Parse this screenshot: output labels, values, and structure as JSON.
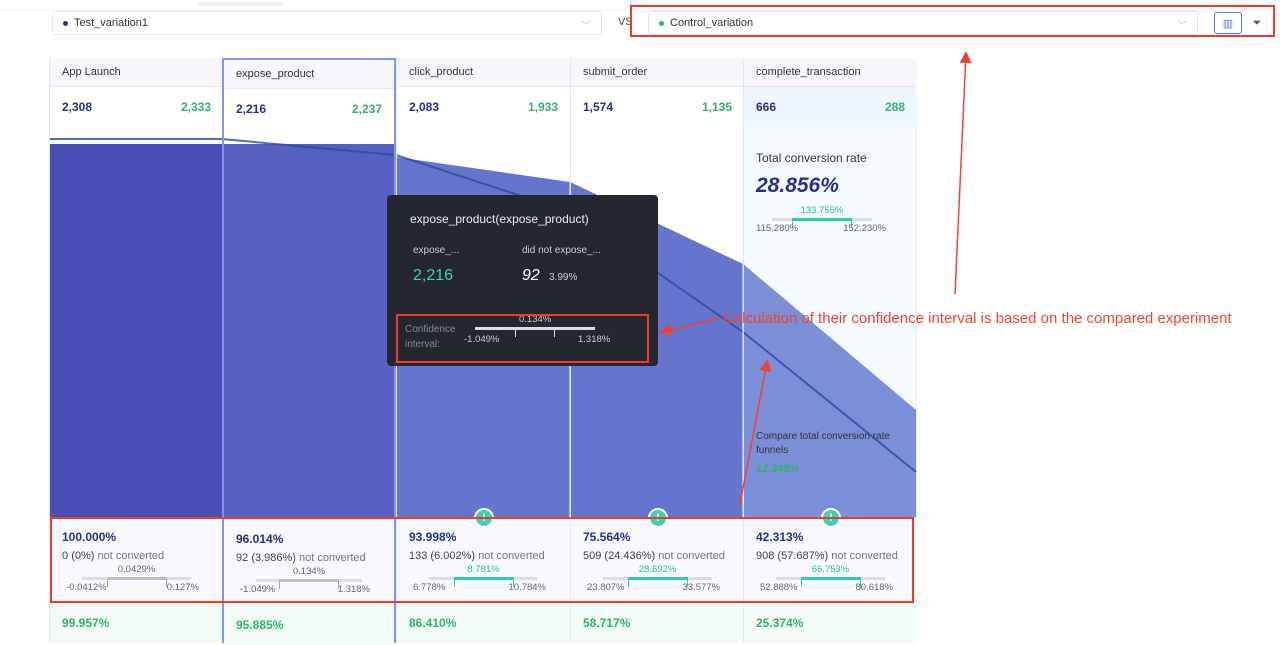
{
  "header": {
    "test_variation": "Test_variation1",
    "vs_label": "VS",
    "control_variation": "Control_variation",
    "test_color": "#23308f",
    "control_color": "#2fb36c"
  },
  "toolbar": {
    "chart_icon": "bar-chart-icon",
    "funnel_icon": "funnel-filter-icon"
  },
  "steps": [
    {
      "name": "App Launch",
      "test": "2,308",
      "control": "2,333",
      "pct": "100.000%",
      "nc_count": "0",
      "nc_pct": "(0%)",
      "nc_label": "not converted",
      "ci_mid": "0.0429%",
      "ci_lo": "-0.0412%",
      "ci_hi": "0.127%",
      "ci_sig": false,
      "control_pct": "99.957%"
    },
    {
      "name": "expose_product",
      "test": "2,216",
      "control": "2,237",
      "pct": "96.014%",
      "nc_count": "92",
      "nc_pct": "(3.986%)",
      "nc_label": "not converted",
      "ci_mid": "0.134%",
      "ci_lo": "-1.049%",
      "ci_hi": "1.318%",
      "ci_sig": false,
      "control_pct": "95.885%"
    },
    {
      "name": "click_product",
      "test": "2,083",
      "control": "1,933",
      "pct": "93.998%",
      "nc_count": "133",
      "nc_pct": "(6.002%)",
      "nc_label": "not converted",
      "ci_mid": "8.781%",
      "ci_lo": "6.778%",
      "ci_hi": "10.784%",
      "ci_sig": true,
      "control_pct": "86.410%"
    },
    {
      "name": "submit_order",
      "test": "1,574",
      "control": "1,135",
      "pct": "75.564%",
      "nc_count": "509",
      "nc_pct": "(24.436%)",
      "nc_label": "not converted",
      "ci_mid": "28.692%",
      "ci_lo": "23.807%",
      "ci_hi": "33.577%",
      "ci_sig": true,
      "control_pct": "58.717%"
    },
    {
      "name": "complete_transaction",
      "test": "666",
      "control": "288",
      "pct": "42.313%",
      "nc_count": "908",
      "nc_pct": "(57.687%)",
      "nc_label": "not converted",
      "ci_mid": "66.753%",
      "ci_lo": "52.888%",
      "ci_hi": "80.618%",
      "ci_sig": true,
      "control_pct": "25.374%"
    }
  ],
  "total": {
    "label": "Total conversion rate",
    "value": "28.856%",
    "ci_mid": "133.755%",
    "ci_lo": "115.280%",
    "ci_hi": "152.230%",
    "compare_label": "Compare total conversion rate funnels",
    "compare_value": "12.345%"
  },
  "tooltip": {
    "title": "expose_product(expose_product)",
    "col1_label": "expose_...",
    "col1_value": "2,216",
    "col2_label": "did not expose_...",
    "col2_value": "92",
    "col2_pct": "3.99%",
    "ci_label": "Confidence interval:",
    "ci_mid": "0.134%",
    "ci_lo": "-1.049%",
    "ci_hi": "1.318%"
  },
  "annotation": {
    "text": "Calculation of their confidence interval is based on the compared experiment",
    "color": "#f0432f"
  }
}
